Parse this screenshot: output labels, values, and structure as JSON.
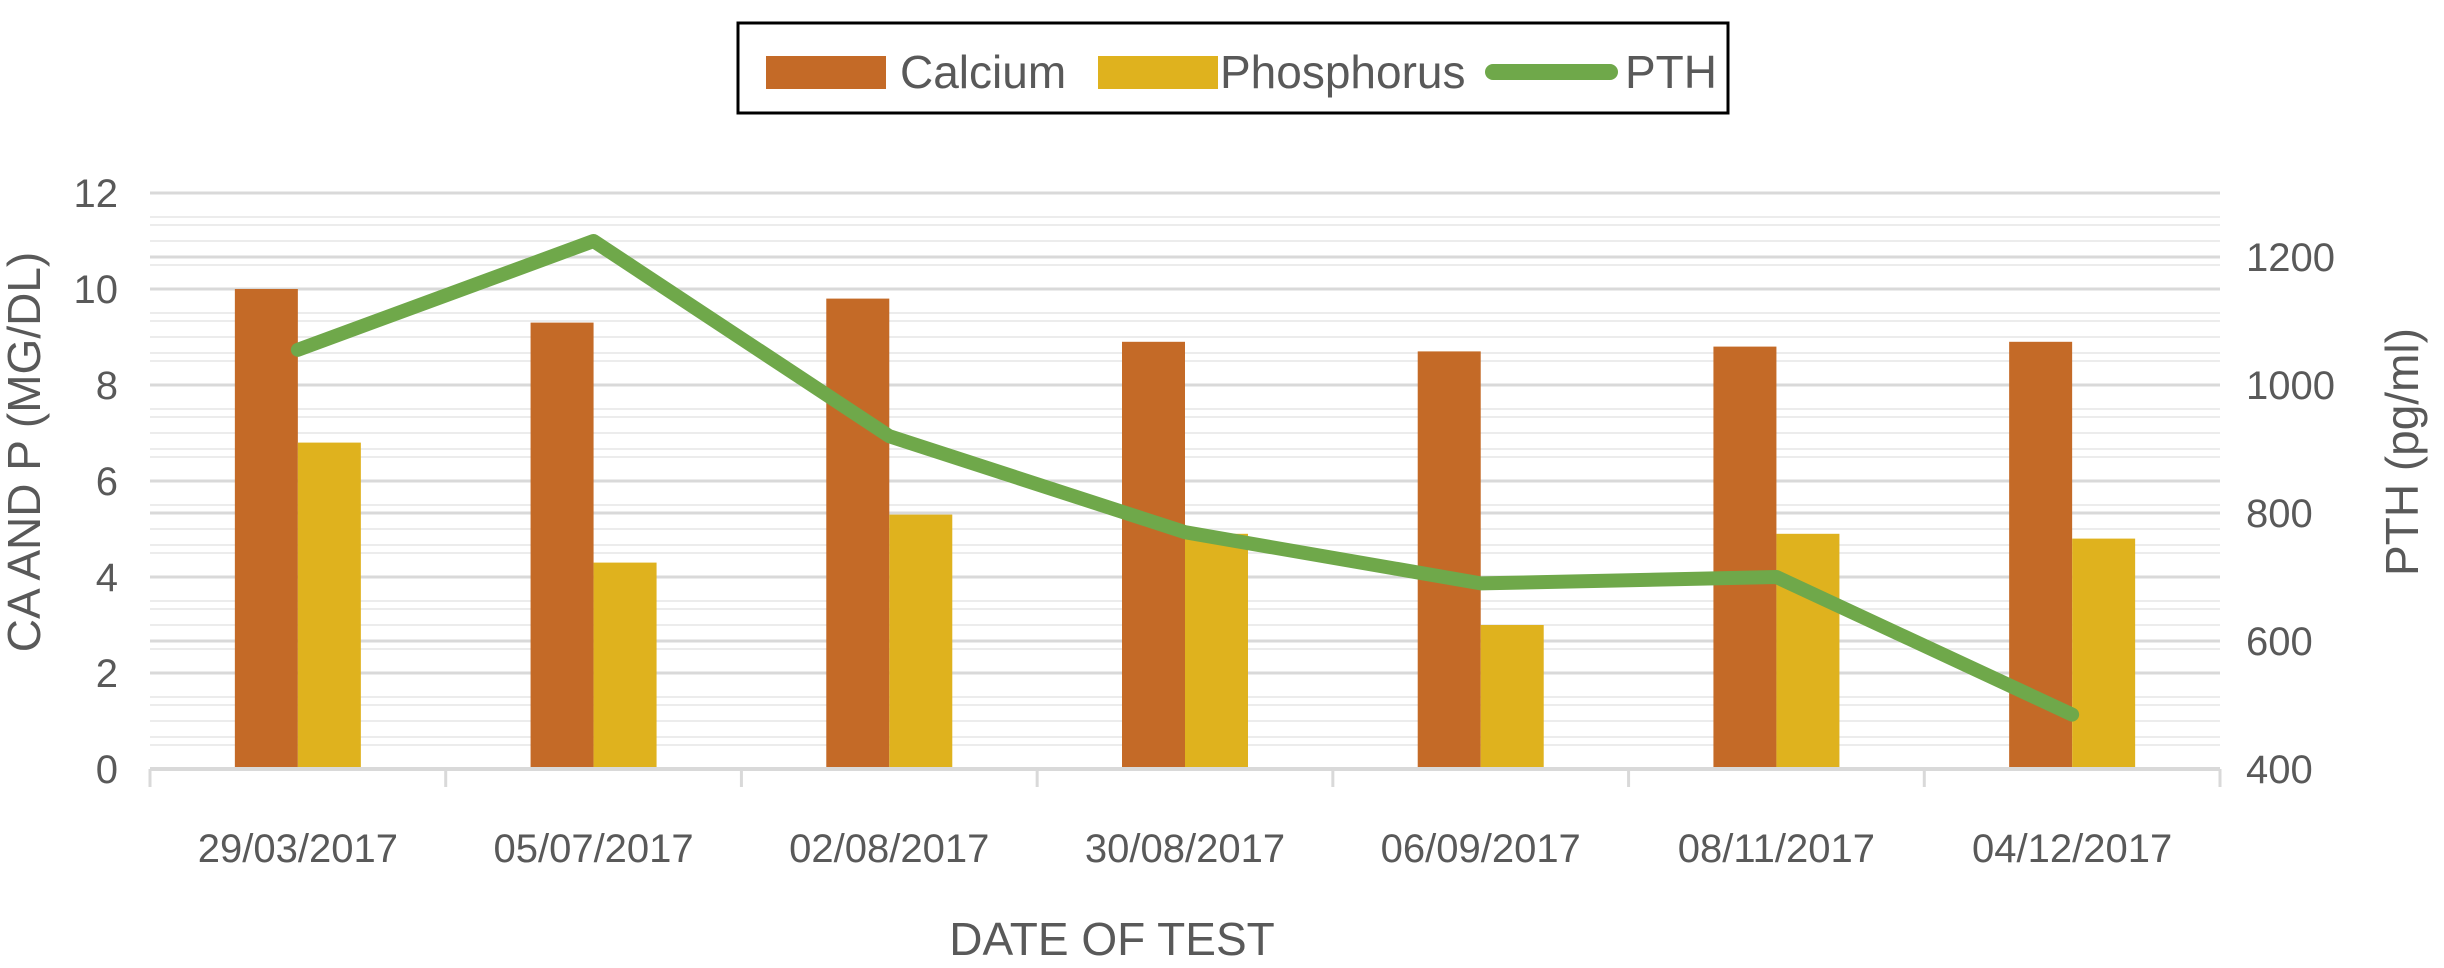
{
  "chart_data": {
    "type": "bar",
    "categories": [
      "29/03/2017",
      "05/07/2017",
      "02/08/2017",
      "30/08/2017",
      "06/09/2017",
      "08/11/2017",
      "04/12/2017"
    ],
    "series": [
      {
        "name": "Calcium",
        "type": "bar",
        "axis": "left",
        "color": "#C46A27",
        "values": [
          10.0,
          9.3,
          9.8,
          8.9,
          8.7,
          8.8,
          8.9
        ]
      },
      {
        "name": "Phosphorus",
        "type": "bar",
        "axis": "left",
        "color": "#DFB21E",
        "values": [
          6.8,
          4.3,
          5.3,
          4.9,
          3.0,
          4.9,
          4.8
        ]
      },
      {
        "name": "PTH",
        "type": "line",
        "axis": "right",
        "color": "#6FA84A",
        "values": [
          1055,
          1225,
          920,
          770,
          690,
          700,
          485
        ]
      }
    ],
    "xlabel": "DATE OF TEST",
    "ylabel": "CA AND P (MG/DL)",
    "y2label": "PTH (pg/ml)",
    "ylim": [
      0,
      12
    ],
    "y2lim": [
      400,
      1300
    ],
    "yticks": [
      "0",
      "2",
      "4",
      "6",
      "8",
      "10",
      "12"
    ],
    "y2ticks": [
      "400",
      "600",
      "800",
      "1000",
      "1200"
    ],
    "legend_position": "top-center",
    "grid": true
  }
}
